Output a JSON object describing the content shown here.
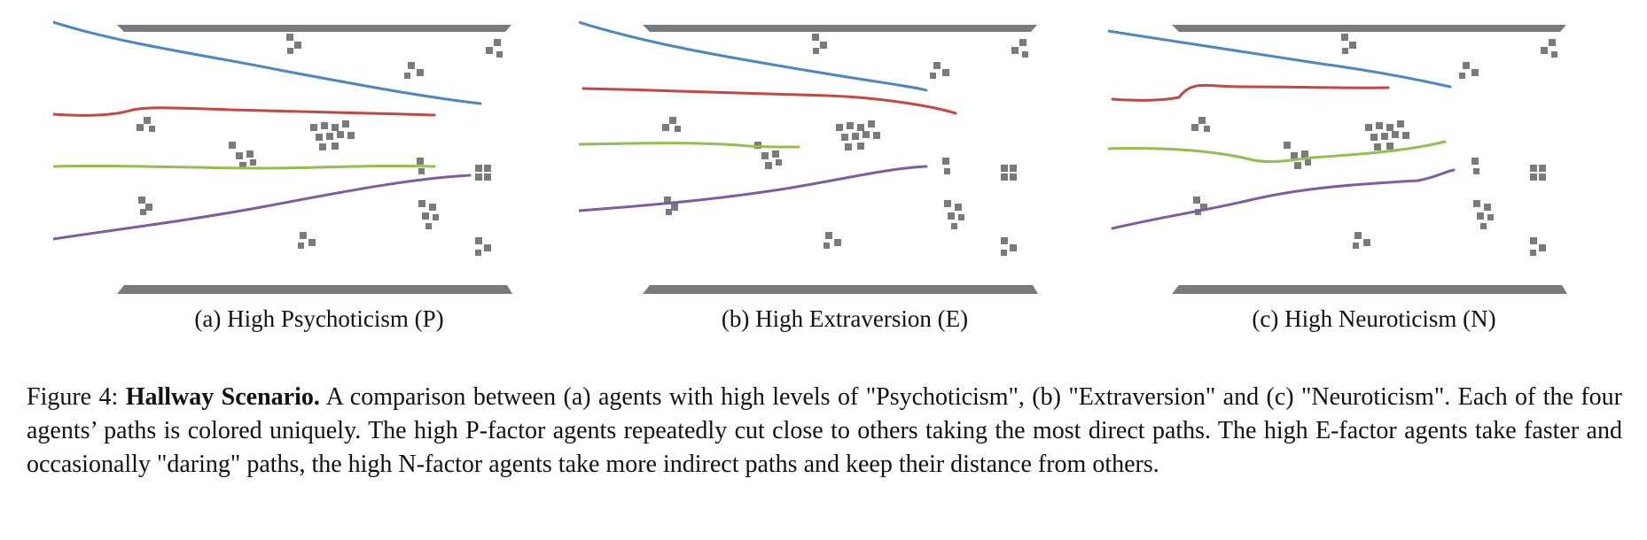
{
  "panels": [
    {
      "id": "a",
      "caption": "(a) High Psychoticism (P)"
    },
    {
      "id": "b",
      "caption": "(b) High Extraversion (E)"
    },
    {
      "id": "c",
      "caption": "(c) High Neuroticism (N)"
    }
  ],
  "figure_caption": {
    "prefix": "Figure 4: ",
    "title": "Hallway Scenario.",
    "body": " A comparison between (a) agents with high levels of \"Psychoticism\", (b) \"Extraversion\" and (c) \"Neuroticism\". Each of the four agents’ paths is colored uniquely. The high P-factor agents repeatedly cut close to others taking the most direct paths. The high E-factor agents take faster and occasionally \"daring\" paths, the high N-factor agents take more indirect paths and keep their distance from others."
  },
  "colors": {
    "wall": "#7a7a7a",
    "obstacle": "#7a7a7a",
    "blue_path": "#4a86c8",
    "red_path": "#c8463f",
    "green_path": "#93bf4c",
    "purple_path": "#7f5aa8"
  }
}
